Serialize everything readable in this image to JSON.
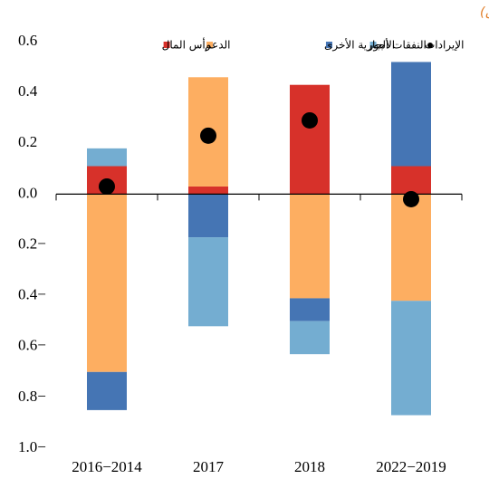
{
  "chart_data": {
    "type": "bar",
    "stacked": true,
    "title": "عبر البلدان)",
    "categories": [
      "2016−2014",
      "2017",
      "2018",
      "2022−2019"
    ],
    "series": [
      {
        "name": "رأس المال",
        "color": "#d7312a",
        "values": [
          0.11,
          0.03,
          0.43,
          0.11
        ]
      },
      {
        "name": "الدعم",
        "color": "#fdae61",
        "values": [
          -0.7,
          0.43,
          -0.41,
          -0.42
        ]
      },
      {
        "name": "النفقات الجارية الأخرى",
        "color": "#4575b4",
        "values": [
          -0.15,
          -0.17,
          -0.09,
          0.41
        ]
      },
      {
        "name": "الأجور",
        "color": "#74add1",
        "values": [
          0.07,
          -0.35,
          -0.13,
          -0.45
        ]
      },
      {
        "name": "الإيرادات",
        "color": "#000000",
        "type": "scatter",
        "values": [
          0.03,
          0.23,
          0.29,
          -0.02
        ]
      }
    ],
    "ylim": [
      -1.0,
      0.6
    ],
    "yticks": [
      0.6,
      0.4,
      0.2,
      {
        "value": 0,
        "label": "0.0"
      },
      {
        "value": -0.2,
        "label": "0.2−"
      },
      {
        "value": -0.4,
        "label": "0.4−"
      },
      {
        "value": -0.6,
        "label": "0.6−"
      },
      {
        "value": -0.8,
        "label": "0.8−"
      },
      {
        "value": -1.0,
        "label": "1.0−"
      }
    ],
    "grid": false
  }
}
